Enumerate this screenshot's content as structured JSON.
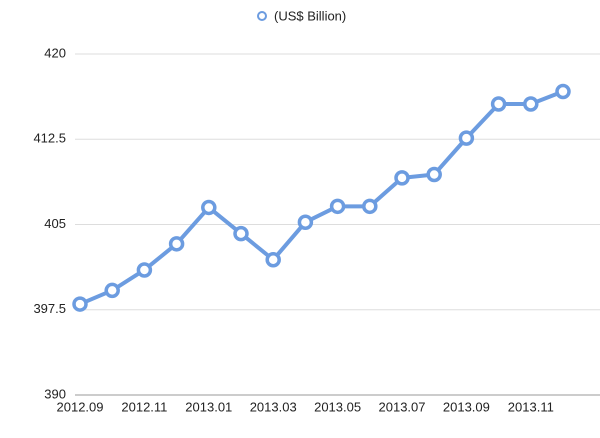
{
  "chart_data": {
    "type": "line",
    "categories": [
      "2012.09",
      null,
      "2012.11",
      null,
      "2013.01",
      null,
      "2013.03",
      null,
      "2013.05",
      null,
      "2013.07",
      null,
      "2013.09",
      null,
      "2013.11",
      null
    ],
    "series": [
      {
        "name": "(US$ Billion)",
        "color": "#6c9ce0",
        "values": [
          398.0,
          399.2,
          401.0,
          403.3,
          406.5,
          404.2,
          401.9,
          405.2,
          406.6,
          406.6,
          409.1,
          409.4,
          412.6,
          415.6,
          415.6,
          416.7
        ]
      }
    ],
    "ylim": [
      390,
      420
    ],
    "yticks": [
      390,
      397.5,
      405,
      412.5,
      420
    ],
    "grid": true,
    "legend": "top"
  }
}
